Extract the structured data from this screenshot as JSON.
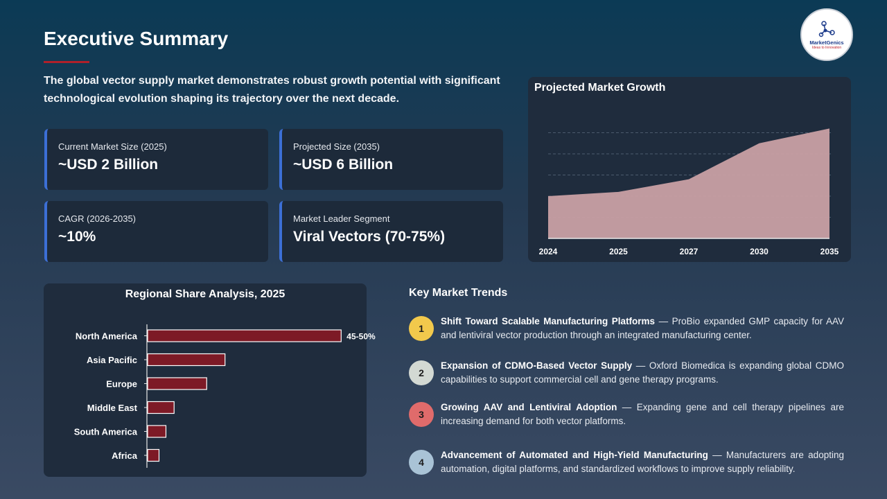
{
  "page": {
    "title": "Executive Summary",
    "subtitle": "The global vector supply market demonstrates robust growth potential with significant technological evolution shaping its trajectory over the next decade.",
    "logo_name": "MarketGenics",
    "logo_tagline": "Ideas to Innovation"
  },
  "kpis": [
    {
      "label": "Current Market Size (2025)",
      "value": "~USD 2 Billion"
    },
    {
      "label": "Projected Size (2035)",
      "value": "~USD 6 Billion"
    },
    {
      "label": "CAGR (2026-2035)",
      "value": "~10%"
    },
    {
      "label": "Market Leader Segment",
      "value": "Viral Vectors (70-75%)"
    }
  ],
  "trends_title": "Key Market Trends",
  "trends": [
    {
      "num": "1",
      "color": "#f2c94c",
      "bold": "Shift Toward Scalable Manufacturing Platforms",
      "text": " — ProBio expanded GMP capacity for AAV and lentiviral vector production through an integrated manufacturing center."
    },
    {
      "num": "2",
      "color": "#d3d9d3",
      "bold": "Expansion of CDMO-Based Vector Supply",
      "text": " — Oxford Biomedica is expanding global CDMO capabilities to support commercial cell and gene therapy programs."
    },
    {
      "num": "3",
      "color": "#e06b6b",
      "bold": "Growing AAV and Lentiviral Adoption",
      "text": " — Expanding gene and cell therapy pipelines are increasing demand for both vector platforms."
    },
    {
      "num": "4",
      "color": "#a9c3d6",
      "bold": "Advancement of Automated and High-Yield Manufacturing",
      "text": " — Manufacturers are adopting automation, digital platforms, and standardized workflows to improve supply reliability."
    }
  ],
  "chart_data": [
    {
      "type": "area",
      "title": "Projected Market Growth",
      "x": [
        "2024",
        "2025",
        "2027",
        "2030",
        "2035"
      ],
      "values": [
        2.0,
        2.2,
        2.8,
        4.5,
        5.2
      ],
      "ylim": [
        0,
        6
      ],
      "grid": true,
      "color": "#c9a0a4"
    },
    {
      "type": "bar",
      "orientation": "horizontal",
      "title": "Regional Share Analysis, 2025",
      "categories": [
        "North America",
        "Asia Pacific",
        "Europe",
        "Middle East",
        "South America",
        "Africa"
      ],
      "values": [
        47.5,
        19.0,
        14.5,
        6.5,
        4.5,
        2.8
      ],
      "data_labels": [
        "45-50%",
        "",
        "",
        "",
        "",
        ""
      ],
      "xlim": [
        0,
        50
      ],
      "color": "#7d1a26"
    }
  ]
}
